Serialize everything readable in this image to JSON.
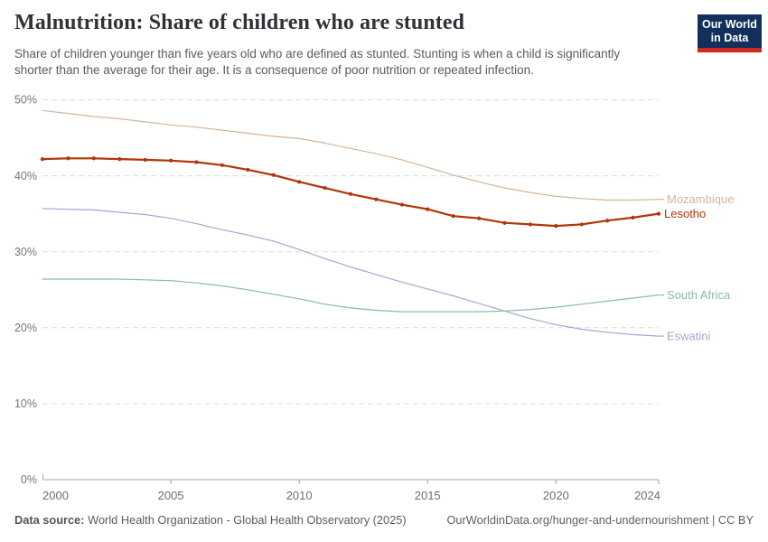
{
  "header": {
    "title": "Malnutrition: Share of children who are stunted",
    "subtitle_lines": [
      "Share of children younger than five years old who are defined as stunted. Stunting is when a child is significantly",
      "shorter than the average for their age. It is a consequence of poor nutrition or repeated infection."
    ],
    "logo": {
      "line1": "Our World",
      "line2": "in Data",
      "bg_color": "#12305b",
      "accent_color": "#cc2a1e"
    }
  },
  "footer": {
    "datasource_label": "Data source:",
    "datasource_text": "World Health Organization - Global Health Observatory (2025)",
    "attribution": "OurWorldinData.org/hunger-and-undernourishment | CC BY"
  },
  "chart_data": {
    "type": "line",
    "title": "Malnutrition: Share of children who are stunted",
    "xlabel": "",
    "ylabel": "",
    "xlim": [
      2000,
      2024
    ],
    "ylim": [
      0,
      50
    ],
    "grid": "horizontal-dashed",
    "legend_position": "right-edge-labels",
    "x": [
      2000,
      2001,
      2002,
      2003,
      2004,
      2005,
      2006,
      2007,
      2008,
      2009,
      2010,
      2011,
      2012,
      2013,
      2014,
      2015,
      2016,
      2017,
      2018,
      2019,
      2020,
      2021,
      2022,
      2023,
      2024
    ],
    "xticks": [
      {
        "v": 2000,
        "label": "2000"
      },
      {
        "v": 2005,
        "label": "2005"
      },
      {
        "v": 2010,
        "label": "2010"
      },
      {
        "v": 2015,
        "label": "2015"
      },
      {
        "v": 2020,
        "label": "2020"
      },
      {
        "v": 2024,
        "label": "2024"
      }
    ],
    "yticks": [
      {
        "v": 0,
        "label": "0%"
      },
      {
        "v": 10,
        "label": "10%"
      },
      {
        "v": 20,
        "label": "20%"
      },
      {
        "v": 30,
        "label": "30%"
      },
      {
        "v": 40,
        "label": "40%"
      },
      {
        "v": 50,
        "label": "50%"
      }
    ],
    "series": [
      {
        "name": "Mozambique",
        "color": "#d3b49a",
        "line_width": 1.2,
        "markers": false,
        "values": [
          48.6,
          48.2,
          47.8,
          47.5,
          47.1,
          46.7,
          46.4,
          46.0,
          45.6,
          45.2,
          44.9,
          44.3,
          43.6,
          42.9,
          42.1,
          41.1,
          40.1,
          39.2,
          38.4,
          37.8,
          37.3,
          37.0,
          36.8,
          36.8,
          36.9
        ]
      },
      {
        "name": "South Africa",
        "color": "#89bba5",
        "line_width": 1.2,
        "markers": false,
        "values": [
          26.4,
          26.4,
          26.4,
          26.4,
          26.3,
          26.2,
          25.9,
          25.5,
          25.0,
          24.4,
          23.8,
          23.1,
          22.6,
          22.3,
          22.1,
          22.1,
          22.1,
          22.1,
          22.2,
          22.4,
          22.7,
          23.1,
          23.5,
          23.9,
          24.3
        ]
      },
      {
        "name": "Eswatini",
        "color": "#a2a9d0",
        "line_width": 1.2,
        "markers": false,
        "values": [
          35.7,
          35.6,
          35.5,
          35.2,
          34.9,
          34.4,
          33.7,
          32.9,
          32.2,
          31.4,
          30.3,
          29.1,
          28.0,
          27.0,
          26.0,
          25.1,
          24.2,
          23.2,
          22.2,
          21.2,
          20.4,
          19.8,
          19.4,
          19.1,
          18.9
        ]
      },
      {
        "name": "Lesotho",
        "color": "#b13507",
        "line_width": 2.2,
        "markers": true,
        "values": [
          42.2,
          42.3,
          42.3,
          42.2,
          42.1,
          42.0,
          41.8,
          41.4,
          40.8,
          40.1,
          39.2,
          38.4,
          37.6,
          36.9,
          36.2,
          35.6,
          34.7,
          34.4,
          33.8,
          33.6,
          33.4,
          33.6,
          34.1,
          34.5,
          35.0
        ]
      }
    ]
  }
}
